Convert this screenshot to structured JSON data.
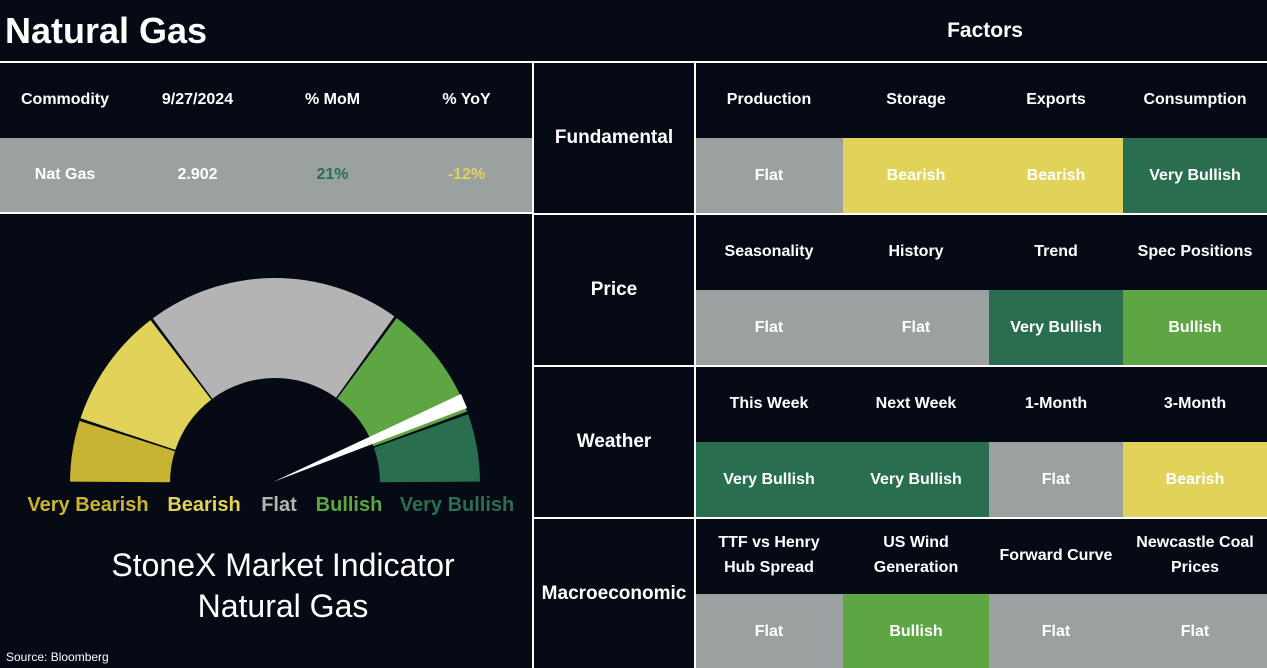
{
  "header": {
    "title": "Natural Gas",
    "factors_title": "Factors"
  },
  "commodity_table": {
    "columns": [
      "Commodity",
      "9/27/2024",
      "% MoM",
      "% YoY"
    ],
    "row": [
      "Nat Gas",
      "2.902",
      "21%",
      "-12%"
    ],
    "row_text_colors": [
      "#ffffff",
      "#ffffff",
      "#2a6e50",
      "#e1d35a"
    ]
  },
  "gauge": {
    "labels": [
      "Very Bearish",
      "Bearish",
      "Flat",
      "Bullish",
      "Very Bullish"
    ],
    "colors": [
      "#c8b432",
      "#e1d35a",
      "#b4b4b4",
      "#5ea643",
      "#2a6e50"
    ],
    "caption": [
      "StoneX Market Indicator",
      "Natural Gas"
    ]
  },
  "source": "Source: Bloomberg",
  "factor_groups": [
    {
      "name": "Fundamental",
      "factors": [
        "Production",
        "Storage",
        "Exports",
        "Consumption"
      ],
      "statuses": [
        "Flat",
        "Bearish",
        "Bearish",
        "Very Bullish"
      ],
      "colors": [
        "#9ba1a1",
        "#e1d35a",
        "#e1d35a",
        "#2a6e50"
      ]
    },
    {
      "name": "Price",
      "factors": [
        "Seasonality",
        "History",
        "Trend",
        "Spec Positions"
      ],
      "statuses": [
        "Flat",
        "Flat",
        "Very Bullish",
        "Bullish"
      ],
      "colors": [
        "#9ba1a1",
        "#9ba1a1",
        "#2a6e50",
        "#5ea643"
      ]
    },
    {
      "name": "Weather",
      "factors": [
        "This Week",
        "Next Week",
        "1-Month",
        "3-Month"
      ],
      "statuses": [
        "Very Bullish",
        "Very Bullish",
        "Flat",
        "Bearish"
      ],
      "colors": [
        "#2a6e50",
        "#2a6e50",
        "#9ba1a1",
        "#e1d35a"
      ]
    },
    {
      "name": "Macroeconomic",
      "factors": [
        "TTF vs Henry Hub Spread",
        "US Wind Generation",
        "Forward Curve",
        "Newcastle Coal Prices"
      ],
      "statuses": [
        "Flat",
        "Bullish",
        "Flat",
        "Flat"
      ],
      "colors": [
        "#9ba1a1",
        "#5ea643",
        "#9ba1a1",
        "#9ba1a1"
      ]
    }
  ]
}
